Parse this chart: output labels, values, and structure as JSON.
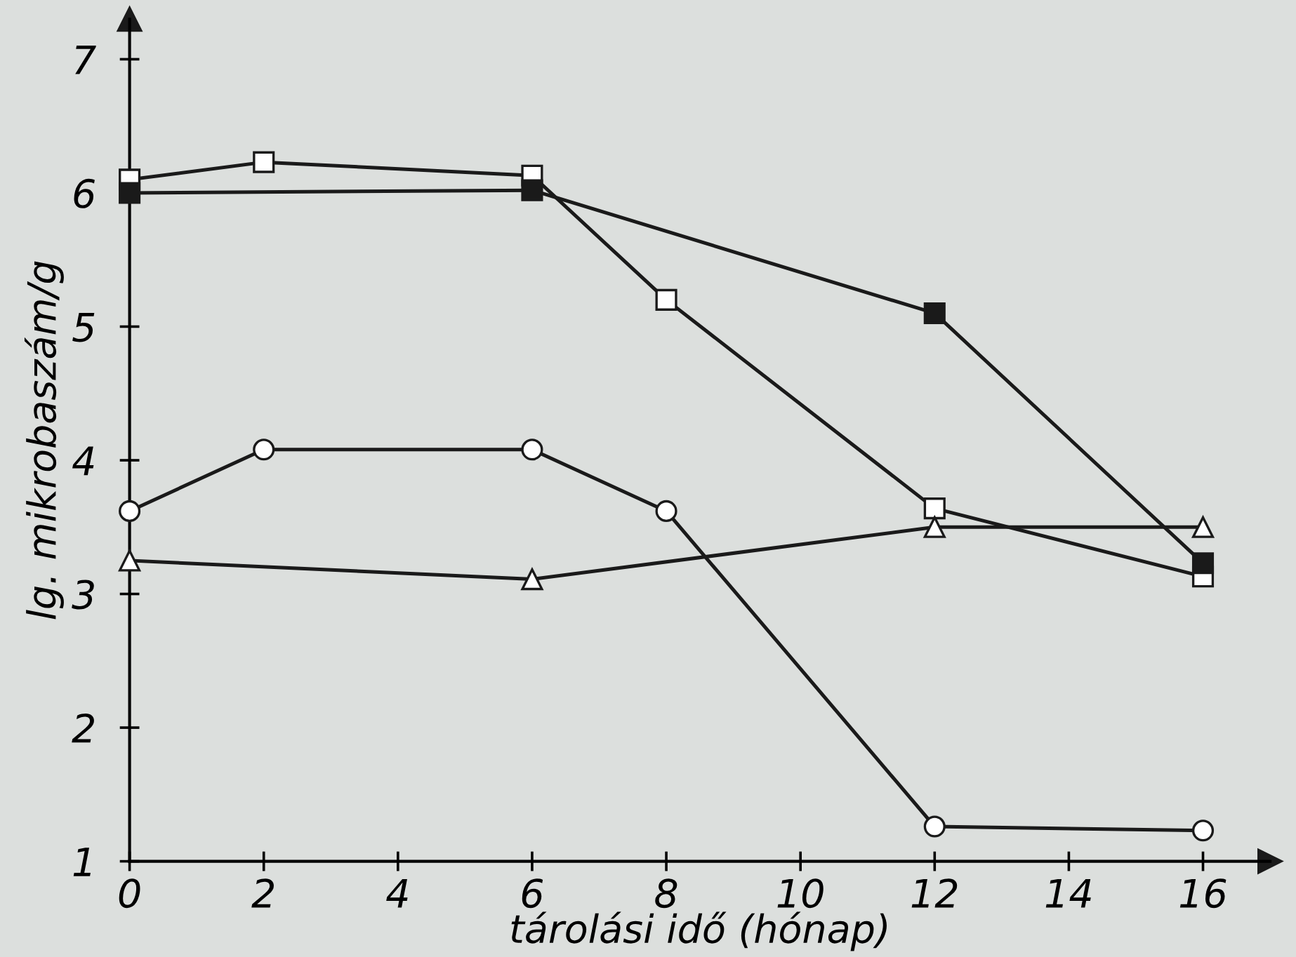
{
  "chart_data": {
    "type": "line",
    "xlabel": "tárolási idő (hónap)",
    "ylabel": "lg. mikrobaszám/g",
    "xlim": [
      0,
      17
    ],
    "ylim": [
      1,
      7.3
    ],
    "xticks": [
      0,
      2,
      4,
      6,
      8,
      10,
      12,
      14,
      16
    ],
    "yticks": [
      1,
      2,
      3,
      4,
      5,
      6,
      7
    ],
    "grid": false,
    "legend": false,
    "line_style": "solid",
    "series": [
      {
        "color": "#ffffff",
        "marker": "square",
        "x": [
          0,
          2,
          6,
          8,
          12,
          16
        ],
        "values": [
          6.1,
          6.23,
          6.13,
          5.2,
          3.64,
          3.13
        ]
      },
      {
        "color": "#1a1a1a",
        "marker": "square",
        "x": [
          0,
          6,
          12,
          16
        ],
        "values": [
          6.0,
          6.02,
          5.1,
          3.23
        ]
      },
      {
        "color": "#ffffff",
        "marker": "circle",
        "x": [
          0,
          2,
          6,
          8,
          12,
          16
        ],
        "values": [
          3.62,
          4.08,
          4.08,
          3.62,
          1.26,
          1.23
        ]
      },
      {
        "color": "#ffffff",
        "marker": "triangle",
        "x": [
          0,
          6,
          12,
          16
        ],
        "values": [
          3.25,
          3.11,
          3.5,
          3.5
        ]
      }
    ]
  }
}
